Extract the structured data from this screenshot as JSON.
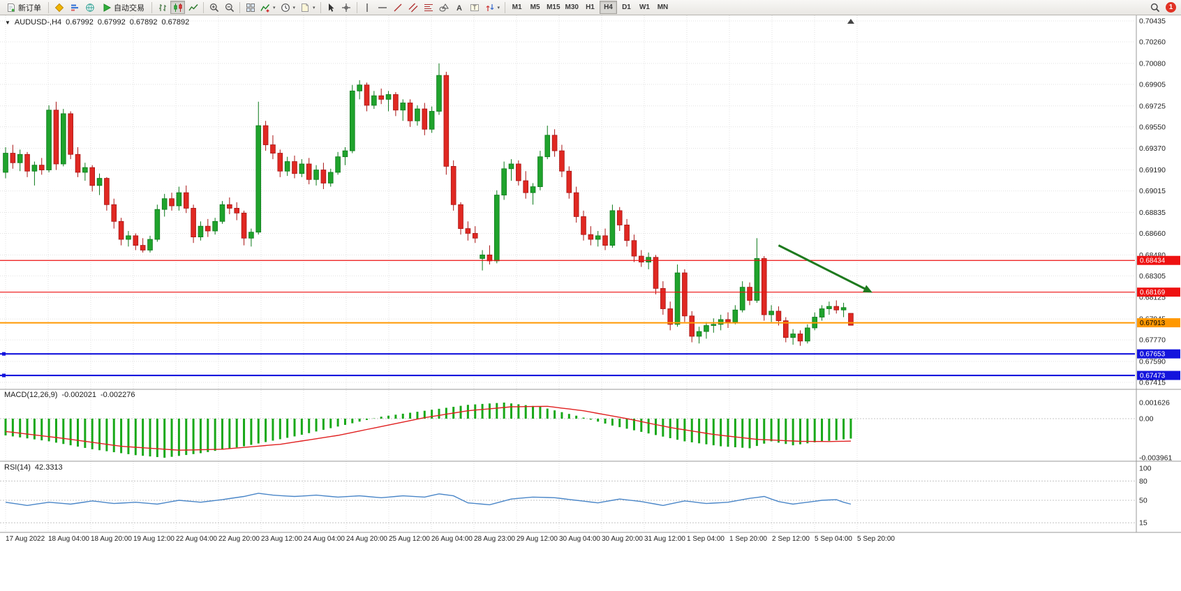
{
  "toolbar": {
    "new_order_label": "新订单",
    "autotrading_label": "自动交易",
    "timeframes": [
      "M1",
      "M5",
      "M15",
      "M30",
      "H1",
      "H4",
      "D1",
      "W1",
      "MN"
    ],
    "active_timeframe": "H4",
    "notification_count": "1",
    "icon_names": [
      "new-order-icon",
      "metaeditor-icon",
      "market-depth-icon",
      "community-icon",
      "autotrading-play-icon",
      "bar-chart-icon",
      "candlestick-chart-icon",
      "line-chart-icon",
      "zoom-in-icon",
      "zoom-out-icon",
      "tile-windows-icon",
      "indicators-icon",
      "periods-clock-icon",
      "template-icon",
      "cursor-icon",
      "crosshair-icon",
      "vertical-line-icon",
      "horizontal-line-icon",
      "trendline-icon",
      "channel-icon",
      "fibonacci-icon",
      "shapes-icon",
      "text-icon",
      "text-label-icon",
      "arrows-icon",
      "search-icon",
      "notification-badge"
    ]
  },
  "chart": {
    "symbol_period": "AUDUSD-,H4",
    "ohlc": [
      "0.67992",
      "0.67992",
      "0.67892",
      "0.67892"
    ]
  },
  "chart_data": {
    "type": "candlestick",
    "symbol": "AUDUSD-",
    "period": "H4",
    "bull_color": "#1fa32c",
    "bear_color": "#e02822",
    "grid_color": "#e0e0e0",
    "candles": [
      [
        0.6917,
        0.6938,
        0.6912,
        0.6933
      ],
      [
        0.6933,
        0.694,
        0.692,
        0.6925
      ],
      [
        0.6925,
        0.6936,
        0.6918,
        0.6932
      ],
      [
        0.6932,
        0.6934,
        0.6913,
        0.6918
      ],
      [
        0.6918,
        0.6926,
        0.6906,
        0.6923
      ],
      [
        0.6923,
        0.6929,
        0.6915,
        0.6919
      ],
      [
        0.6919,
        0.6973,
        0.6917,
        0.6969
      ],
      [
        0.6969,
        0.6976,
        0.6919,
        0.6924
      ],
      [
        0.6924,
        0.697,
        0.6922,
        0.6966
      ],
      [
        0.6966,
        0.6968,
        0.6928,
        0.6932
      ],
      [
        0.6932,
        0.6938,
        0.6913,
        0.6917
      ],
      [
        0.6917,
        0.6925,
        0.691,
        0.6921
      ],
      [
        0.6921,
        0.6923,
        0.6901,
        0.6906
      ],
      [
        0.6906,
        0.6916,
        0.6898,
        0.6912
      ],
      [
        0.6912,
        0.6913,
        0.6885,
        0.689
      ],
      [
        0.689,
        0.6895,
        0.687,
        0.6876
      ],
      [
        0.6876,
        0.6879,
        0.6856,
        0.6861
      ],
      [
        0.6861,
        0.6868,
        0.6855,
        0.6864
      ],
      [
        0.6864,
        0.6866,
        0.6852,
        0.6856
      ],
      [
        0.6856,
        0.6862,
        0.685,
        0.6852
      ],
      [
        0.6852,
        0.6864,
        0.685,
        0.6861
      ],
      [
        0.6861,
        0.689,
        0.6859,
        0.6886
      ],
      [
        0.6886,
        0.6899,
        0.688,
        0.6895
      ],
      [
        0.6895,
        0.69,
        0.6885,
        0.6889
      ],
      [
        0.6889,
        0.6905,
        0.6885,
        0.69
      ],
      [
        0.69,
        0.6906,
        0.6883,
        0.6887
      ],
      [
        0.6887,
        0.689,
        0.6858,
        0.6863
      ],
      [
        0.6863,
        0.6876,
        0.686,
        0.6872
      ],
      [
        0.6872,
        0.6878,
        0.6863,
        0.6868
      ],
      [
        0.6868,
        0.6879,
        0.6865,
        0.6876
      ],
      [
        0.6876,
        0.6893,
        0.6874,
        0.689
      ],
      [
        0.689,
        0.6896,
        0.6882,
        0.6887
      ],
      [
        0.6887,
        0.6892,
        0.6877,
        0.6883
      ],
      [
        0.6883,
        0.6885,
        0.6856,
        0.6862
      ],
      [
        0.6862,
        0.687,
        0.6855,
        0.6867
      ],
      [
        0.6867,
        0.6976,
        0.6865,
        0.6956
      ],
      [
        0.6956,
        0.696,
        0.6935,
        0.694
      ],
      [
        0.694,
        0.6948,
        0.6928,
        0.6933
      ],
      [
        0.6933,
        0.6936,
        0.6913,
        0.6918
      ],
      [
        0.6918,
        0.693,
        0.6914,
        0.6926
      ],
      [
        0.6926,
        0.6931,
        0.6912,
        0.6916
      ],
      [
        0.6916,
        0.6928,
        0.6913,
        0.6924
      ],
      [
        0.6924,
        0.6929,
        0.6907,
        0.6911
      ],
      [
        0.6911,
        0.6923,
        0.6906,
        0.6919
      ],
      [
        0.6919,
        0.6925,
        0.6903,
        0.6908
      ],
      [
        0.6908,
        0.692,
        0.6905,
        0.6917
      ],
      [
        0.6917,
        0.6934,
        0.6915,
        0.693
      ],
      [
        0.693,
        0.6938,
        0.6923,
        0.6935
      ],
      [
        0.6935,
        0.699,
        0.6933,
        0.6985
      ],
      [
        0.6985,
        0.6994,
        0.6978,
        0.699
      ],
      [
        0.699,
        0.6992,
        0.6968,
        0.6973
      ],
      [
        0.6973,
        0.6985,
        0.697,
        0.6981
      ],
      [
        0.6981,
        0.6987,
        0.6974,
        0.6978
      ],
      [
        0.6978,
        0.6985,
        0.6968,
        0.6982
      ],
      [
        0.6982,
        0.6984,
        0.6964,
        0.6969
      ],
      [
        0.6969,
        0.6978,
        0.696,
        0.6975
      ],
      [
        0.6975,
        0.6978,
        0.6955,
        0.696
      ],
      [
        0.696,
        0.6973,
        0.6956,
        0.697
      ],
      [
        0.697,
        0.6975,
        0.6948,
        0.6953
      ],
      [
        0.6953,
        0.6972,
        0.695,
        0.6968
      ],
      [
        0.6968,
        0.7008,
        0.6965,
        0.6998
      ],
      [
        0.6998,
        0.7001,
        0.6915,
        0.6922
      ],
      [
        0.6922,
        0.6927,
        0.6885,
        0.689
      ],
      [
        0.689,
        0.6892,
        0.6865,
        0.687
      ],
      [
        0.687,
        0.6876,
        0.686,
        0.6866
      ],
      [
        0.6866,
        0.6872,
        0.6858,
        0.6862
      ],
      [
        0.6845,
        0.6852,
        0.6835,
        0.6848
      ],
      [
        0.6848,
        0.6856,
        0.684,
        0.6843
      ],
      [
        0.6843,
        0.6902,
        0.6841,
        0.6898
      ],
      [
        0.6898,
        0.6926,
        0.6894,
        0.692
      ],
      [
        0.692,
        0.6928,
        0.691,
        0.6924
      ],
      [
        0.6924,
        0.6927,
        0.6906,
        0.691
      ],
      [
        0.691,
        0.6918,
        0.6895,
        0.69
      ],
      [
        0.69,
        0.6908,
        0.689,
        0.6905
      ],
      [
        0.6905,
        0.6935,
        0.6902,
        0.693
      ],
      [
        0.693,
        0.6956,
        0.6928,
        0.6948
      ],
      [
        0.6948,
        0.6953,
        0.693,
        0.6935
      ],
      [
        0.6935,
        0.694,
        0.6913,
        0.6918
      ],
      [
        0.6918,
        0.6922,
        0.6895,
        0.69
      ],
      [
        0.69,
        0.6905,
        0.6875,
        0.688
      ],
      [
        0.688,
        0.6885,
        0.686,
        0.6865
      ],
      [
        0.6865,
        0.6872,
        0.6856,
        0.6861
      ],
      [
        0.6861,
        0.6868,
        0.6855,
        0.6864
      ],
      [
        0.6864,
        0.687,
        0.6852,
        0.6856
      ],
      [
        0.6856,
        0.689,
        0.6854,
        0.6885
      ],
      [
        0.6885,
        0.6888,
        0.6868,
        0.6873
      ],
      [
        0.6873,
        0.6878,
        0.6855,
        0.686
      ],
      [
        0.686,
        0.6865,
        0.6842,
        0.6847
      ],
      [
        0.6847,
        0.6852,
        0.6838,
        0.6842
      ],
      [
        0.6842,
        0.685,
        0.6836,
        0.6846
      ],
      [
        0.6846,
        0.6848,
        0.6815,
        0.682
      ],
      [
        0.682,
        0.6826,
        0.6798,
        0.6803
      ],
      [
        0.6803,
        0.6809,
        0.6785,
        0.679
      ],
      [
        0.679,
        0.684,
        0.6788,
        0.6833
      ],
      [
        0.6833,
        0.6836,
        0.6792,
        0.6797
      ],
      [
        0.6797,
        0.6801,
        0.6775,
        0.678
      ],
      [
        0.678,
        0.6788,
        0.6774,
        0.6784
      ],
      [
        0.6784,
        0.6792,
        0.6778,
        0.6789
      ],
      [
        0.6789,
        0.6795,
        0.6783,
        0.679
      ],
      [
        0.679,
        0.6798,
        0.6785,
        0.6794
      ],
      [
        0.6794,
        0.68,
        0.6787,
        0.6792
      ],
      [
        0.6792,
        0.6806,
        0.679,
        0.6802
      ],
      [
        0.6802,
        0.6826,
        0.68,
        0.6821
      ],
      [
        0.6821,
        0.6825,
        0.6806,
        0.681
      ],
      [
        0.681,
        0.6862,
        0.6808,
        0.6845
      ],
      [
        0.6845,
        0.6847,
        0.6793,
        0.6798
      ],
      [
        0.6798,
        0.6806,
        0.6792,
        0.6801
      ],
      [
        0.6801,
        0.6805,
        0.6789,
        0.6793
      ],
      [
        0.6793,
        0.6796,
        0.6775,
        0.6779
      ],
      [
        0.6779,
        0.6786,
        0.6773,
        0.6782
      ],
      [
        0.6782,
        0.6785,
        0.6772,
        0.6776
      ],
      [
        0.6776,
        0.679,
        0.6774,
        0.6787
      ],
      [
        0.6787,
        0.68,
        0.6785,
        0.6796
      ],
      [
        0.6796,
        0.6806,
        0.6793,
        0.6803
      ],
      [
        0.6803,
        0.6809,
        0.6798,
        0.6805
      ],
      [
        0.6805,
        0.681,
        0.6799,
        0.6802
      ],
      [
        0.6802,
        0.6808,
        0.6796,
        0.6804
      ],
      [
        0.67992,
        0.67992,
        0.67892,
        0.67892
      ]
    ],
    "time_labels": [
      "17 Aug 2022",
      "18 Aug 04:00",
      "18 Aug 20:00",
      "19 Aug 12:00",
      "22 Aug 04:00",
      "22 Aug 20:00",
      "23 Aug 12:00",
      "24 Aug 04:00",
      "24 Aug 20:00",
      "25 Aug 12:00",
      "26 Aug 04:00",
      "28 Aug 23:00",
      "29 Aug 12:00",
      "30 Aug 04:00",
      "30 Aug 20:00",
      "31 Aug 12:00",
      "1 Sep 04:00",
      "1 Sep 20:00",
      "2 Sep 12:00",
      "5 Sep 04:00",
      "5 Sep 20:00"
    ],
    "price_axis": {
      "min": 0.67415,
      "max": 0.70435,
      "labels": [
        "0.70435",
        "0.70260",
        "0.70080",
        "0.69905",
        "0.69725",
        "0.69550",
        "0.69370",
        "0.69190",
        "0.69015",
        "0.68835",
        "0.68660",
        "0.68480",
        "0.68305",
        "0.68125",
        "0.67945",
        "0.67770",
        "0.67590",
        "0.67415"
      ]
    },
    "hlines": [
      {
        "price": 0.68434,
        "label": "0.68434",
        "color": "#ee1111",
        "width": 1.2,
        "text_color": "#ffffff"
      },
      {
        "price": 0.68169,
        "label": "0.68169",
        "color": "#ee1111",
        "width": 1.2,
        "text_color": "#ffffff"
      },
      {
        "price": 0.67913,
        "label": "0.67913",
        "color": "#ff9800",
        "width": 2,
        "text_color": "#000000"
      },
      {
        "price": 0.67653,
        "label": "0.67653",
        "color": "#1414dd",
        "width": 2.2,
        "text_color": "#ffffff"
      },
      {
        "price": 0.67473,
        "label": "0.67473",
        "color": "#1414dd",
        "width": 2.2,
        "text_color": "#ffffff"
      }
    ],
    "arrow": {
      "from_index": 107,
      "from_price": 0.6856,
      "to_index": 120,
      "to_price": 0.68165,
      "color": "#1e7a1e",
      "width": 3
    },
    "macd": {
      "label": "MACD(12,26,9)",
      "values": [
        "-0.002021",
        "-0.002276"
      ],
      "scale_labels": [
        "0.001626",
        "0.00",
        "-0.003961"
      ],
      "scale_values": [
        0.001626,
        0,
        -0.003961
      ],
      "histogram_color": "#18a818",
      "signal_color": "#e02020",
      "histogram_anchors": [
        [
          0,
          -0.0017
        ],
        [
          6,
          -0.0023
        ],
        [
          12,
          -0.0031
        ],
        [
          18,
          -0.0037
        ],
        [
          22,
          -0.00396
        ],
        [
          27,
          -0.0035
        ],
        [
          33,
          -0.0028
        ],
        [
          40,
          -0.0018
        ],
        [
          46,
          -0.0008
        ],
        [
          52,
          0.0002
        ],
        [
          58,
          0.0008
        ],
        [
          64,
          0.0014
        ],
        [
          69,
          0.00163
        ],
        [
          74,
          0.0012
        ],
        [
          79,
          0.0003
        ],
        [
          84,
          -0.0007
        ],
        [
          89,
          -0.0015
        ],
        [
          94,
          -0.0023
        ],
        [
          99,
          -0.0028
        ],
        [
          103,
          -0.003
        ],
        [
          106,
          -0.0023
        ],
        [
          109,
          -0.0027
        ],
        [
          112,
          -0.0024
        ],
        [
          117,
          -0.00202
        ]
      ],
      "signal_anchors": [
        [
          0,
          -0.0013
        ],
        [
          8,
          -0.002
        ],
        [
          16,
          -0.0028
        ],
        [
          24,
          -0.0032
        ],
        [
          30,
          -0.0031
        ],
        [
          38,
          -0.0026
        ],
        [
          46,
          -0.0017
        ],
        [
          52,
          -0.0008
        ],
        [
          58,
          0.0001
        ],
        [
          64,
          0.0008
        ],
        [
          70,
          0.0012
        ],
        [
          75,
          0.00125
        ],
        [
          80,
          0.0008
        ],
        [
          86,
          0
        ],
        [
          92,
          -0.0009
        ],
        [
          98,
          -0.0016
        ],
        [
          104,
          -0.0021
        ],
        [
          110,
          -0.0023
        ],
        [
          114,
          -0.00232
        ],
        [
          117,
          -0.00228
        ]
      ]
    },
    "rsi": {
      "label": "RSI(14)",
      "value": "42.3313",
      "scale_labels": [
        "100",
        "80",
        "50",
        "15"
      ],
      "scale_values": [
        100,
        80,
        50,
        15
      ],
      "levels": [
        80,
        50,
        15
      ],
      "line_color": "#4a86c8",
      "anchors": [
        [
          0,
          47
        ],
        [
          3,
          42
        ],
        [
          6,
          47
        ],
        [
          9,
          44
        ],
        [
          12,
          49
        ],
        [
          15,
          45
        ],
        [
          18,
          47
        ],
        [
          21,
          44
        ],
        [
          24,
          50
        ],
        [
          27,
          47
        ],
        [
          30,
          51
        ],
        [
          33,
          56
        ],
        [
          35,
          61
        ],
        [
          37,
          58
        ],
        [
          40,
          56
        ],
        [
          43,
          58
        ],
        [
          46,
          55
        ],
        [
          49,
          57
        ],
        [
          52,
          54
        ],
        [
          55,
          57
        ],
        [
          58,
          55
        ],
        [
          60,
          60
        ],
        [
          62,
          57
        ],
        [
          64,
          46
        ],
        [
          67,
          43
        ],
        [
          70,
          52
        ],
        [
          73,
          55
        ],
        [
          76,
          54
        ],
        [
          79,
          50
        ],
        [
          82,
          46
        ],
        [
          85,
          52
        ],
        [
          88,
          48
        ],
        [
          91,
          42
        ],
        [
          94,
          49
        ],
        [
          97,
          45
        ],
        [
          100,
          47
        ],
        [
          103,
          53
        ],
        [
          105,
          56
        ],
        [
          107,
          48
        ],
        [
          109,
          44
        ],
        [
          111,
          47
        ],
        [
          113,
          50
        ],
        [
          115,
          51
        ],
        [
          116,
          47
        ],
        [
          117,
          44
        ]
      ]
    }
  }
}
